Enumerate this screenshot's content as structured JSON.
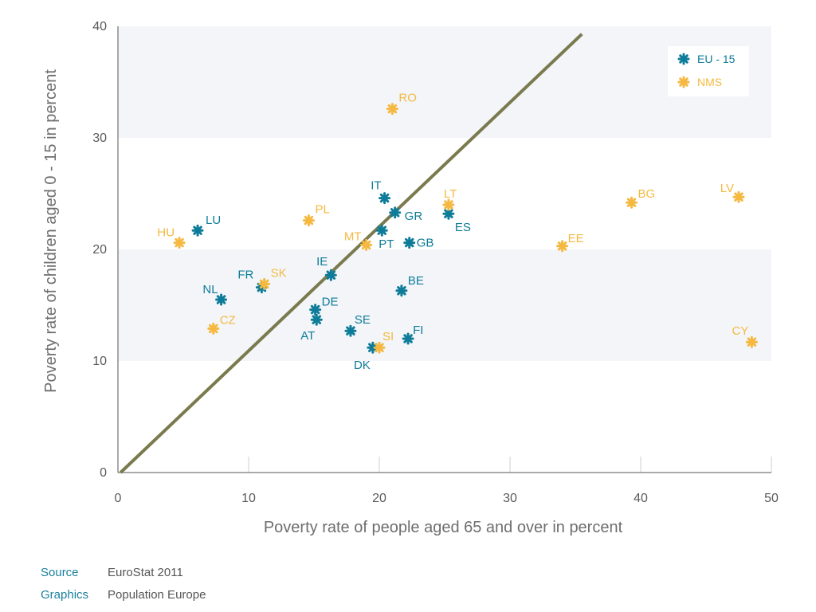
{
  "chart_data": {
    "type": "scatter",
    "xlabel": "Poverty rate of people aged 65 and over in percent",
    "ylabel": "Poverty rate of children aged 0 - 15 in percent",
    "xlim": [
      0,
      50
    ],
    "ylim": [
      0,
      40
    ],
    "xticks": [
      0,
      10,
      20,
      30,
      40,
      50
    ],
    "yticks": [
      0,
      10,
      20,
      30,
      40
    ],
    "reference_line": {
      "x": [
        0.2,
        35.5
      ],
      "y": [
        0,
        39.3
      ],
      "color": "#7a7a4e"
    },
    "legend_position": "top-right",
    "series": [
      {
        "name": "EU - 15",
        "color": "#0e7c99",
        "points": [
          {
            "label": "LU",
            "x": 6.1,
            "y": 21.7
          },
          {
            "label": "NL",
            "x": 7.9,
            "y": 15.5
          },
          {
            "label": "FR",
            "x": 11.0,
            "y": 16.6
          },
          {
            "label": "IE",
            "x": 16.3,
            "y": 17.7
          },
          {
            "label": "DE",
            "x": 15.1,
            "y": 14.6
          },
          {
            "label": "AT",
            "x": 15.2,
            "y": 13.7
          },
          {
            "label": "SE",
            "x": 17.8,
            "y": 12.7
          },
          {
            "label": "DK",
            "x": 19.5,
            "y": 11.2
          },
          {
            "label": "IT",
            "x": 20.4,
            "y": 24.6
          },
          {
            "label": "GR",
            "x": 21.2,
            "y": 23.3
          },
          {
            "label": "PT",
            "x": 20.2,
            "y": 21.7
          },
          {
            "label": "GB",
            "x": 22.3,
            "y": 20.6
          },
          {
            "label": "ES",
            "x": 25.3,
            "y": 23.2
          },
          {
            "label": "BE",
            "x": 21.7,
            "y": 16.3
          },
          {
            "label": "FI",
            "x": 22.2,
            "y": 12.0
          }
        ]
      },
      {
        "name": "NMS",
        "color": "#f5b942",
        "points": [
          {
            "label": "HU",
            "x": 4.7,
            "y": 20.6
          },
          {
            "label": "CZ",
            "x": 7.3,
            "y": 12.9
          },
          {
            "label": "SK",
            "x": 11.2,
            "y": 16.9
          },
          {
            "label": "PL",
            "x": 14.6,
            "y": 22.6
          },
          {
            "label": "MT",
            "x": 19.0,
            "y": 20.4
          },
          {
            "label": "SI",
            "x": 20.0,
            "y": 11.2
          },
          {
            "label": "RO",
            "x": 21.0,
            "y": 32.6
          },
          {
            "label": "LT",
            "x": 25.3,
            "y": 24.0
          },
          {
            "label": "EE",
            "x": 34.0,
            "y": 20.3
          },
          {
            "label": "BG",
            "x": 39.3,
            "y": 24.2
          },
          {
            "label": "LV",
            "x": 47.5,
            "y": 24.7
          },
          {
            "label": "CY",
            "x": 48.5,
            "y": 11.7
          }
        ]
      }
    ]
  },
  "footer": {
    "source_label": "Source",
    "source_value": "EuroStat 2011",
    "graphics_label": "Graphics",
    "graphics_value": "Population Europe"
  }
}
